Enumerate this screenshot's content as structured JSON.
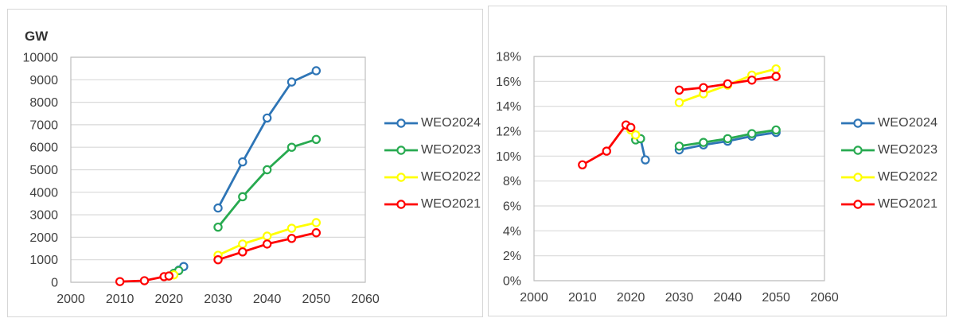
{
  "page_title": "WEO scenario comparison charts",
  "colors": {
    "weo2024": "#2e75b6",
    "weo2023": "#28aa50",
    "weo2022": "#ffff00",
    "weo2021": "#ff0000",
    "gridline": "#d9d9d9",
    "plot_border": "#bfbfbf",
    "tick_text": "#404040"
  },
  "chart_data": [
    {
      "type": "line",
      "title": "",
      "ylabel": "GW",
      "xlabel": "",
      "grid": true,
      "legend_position": "right",
      "xlim": [
        2000,
        2060
      ],
      "x_ticks": [
        2000,
        2010,
        2020,
        2030,
        2040,
        2050,
        2060
      ],
      "ylim": [
        0,
        10000
      ],
      "y_ticks": [
        0,
        1000,
        2000,
        3000,
        4000,
        5000,
        6000,
        7000,
        8000,
        9000,
        10000
      ],
      "y_tick_suffix": "",
      "series": [
        {
          "name": "WEO2024",
          "color": "#2e75b6",
          "segments": [
            {
              "x": [
                2022,
                2023
              ],
              "y": [
                540,
                700
              ]
            },
            {
              "x": [
                2030,
                2035,
                2040,
                2045,
                2050
              ],
              "y": [
                3300,
                5350,
                7300,
                8900,
                9400
              ]
            }
          ]
        },
        {
          "name": "WEO2023",
          "color": "#28aa50",
          "segments": [
            {
              "x": [
                2021,
                2022
              ],
              "y": [
                400,
                520
              ]
            },
            {
              "x": [
                2030,
                2035,
                2040,
                2045,
                2050
              ],
              "y": [
                2450,
                3800,
                5000,
                6000,
                6350
              ]
            }
          ]
        },
        {
          "name": "WEO2022",
          "color": "#ffff00",
          "segments": [
            {
              "x": [
                2020,
                2021
              ],
              "y": [
                280,
                330
              ]
            },
            {
              "x": [
                2030,
                2035,
                2040,
                2045,
                2050
              ],
              "y": [
                1200,
                1700,
                2050,
                2400,
                2650
              ]
            }
          ]
        },
        {
          "name": "WEO2021",
          "color": "#ff0000",
          "segments": [
            {
              "x": [
                2010,
                2015,
                2019,
                2020
              ],
              "y": [
                30,
                70,
                250,
                280
              ]
            },
            {
              "x": [
                2030,
                2035,
                2040,
                2045,
                2050
              ],
              "y": [
                1000,
                1350,
                1700,
                1950,
                2200
              ]
            }
          ]
        }
      ]
    },
    {
      "type": "line",
      "title": "",
      "ylabel": "",
      "xlabel": "",
      "grid": true,
      "legend_position": "right",
      "xlim": [
        2000,
        2060
      ],
      "x_ticks": [
        2000,
        2010,
        2020,
        2030,
        2040,
        2050,
        2060
      ],
      "ylim": [
        0,
        18
      ],
      "y_ticks": [
        0,
        2,
        4,
        6,
        8,
        10,
        12,
        14,
        16,
        18
      ],
      "y_tick_suffix": "%",
      "series": [
        {
          "name": "WEO2024",
          "color": "#2e75b6",
          "segments": [
            {
              "x": [
                2022,
                2023
              ],
              "y": [
                11.4,
                9.7
              ]
            },
            {
              "x": [
                2030,
                2035,
                2040,
                2045,
                2050
              ],
              "y": [
                10.5,
                10.9,
                11.2,
                11.6,
                11.9
              ]
            }
          ]
        },
        {
          "name": "WEO2023",
          "color": "#28aa50",
          "segments": [
            {
              "x": [
                2021,
                2022
              ],
              "y": [
                11.3,
                11.4
              ]
            },
            {
              "x": [
                2030,
                2035,
                2040,
                2045,
                2050
              ],
              "y": [
                10.8,
                11.1,
                11.4,
                11.8,
                12.1
              ]
            }
          ]
        },
        {
          "name": "WEO2022",
          "color": "#ffff00",
          "segments": [
            {
              "x": [
                2020,
                2021
              ],
              "y": [
                12.1,
                11.7
              ]
            },
            {
              "x": [
                2030,
                2035,
                2040,
                2045,
                2050
              ],
              "y": [
                14.3,
                15.0,
                15.7,
                16.5,
                17.0
              ]
            }
          ]
        },
        {
          "name": "WEO2021",
          "color": "#ff0000",
          "segments": [
            {
              "x": [
                2010,
                2015,
                2019,
                2020
              ],
              "y": [
                9.3,
                10.4,
                12.5,
                12.3
              ]
            },
            {
              "x": [
                2030,
                2035,
                2040,
                2045,
                2050
              ],
              "y": [
                15.3,
                15.5,
                15.8,
                16.1,
                16.4
              ]
            }
          ]
        }
      ]
    }
  ]
}
